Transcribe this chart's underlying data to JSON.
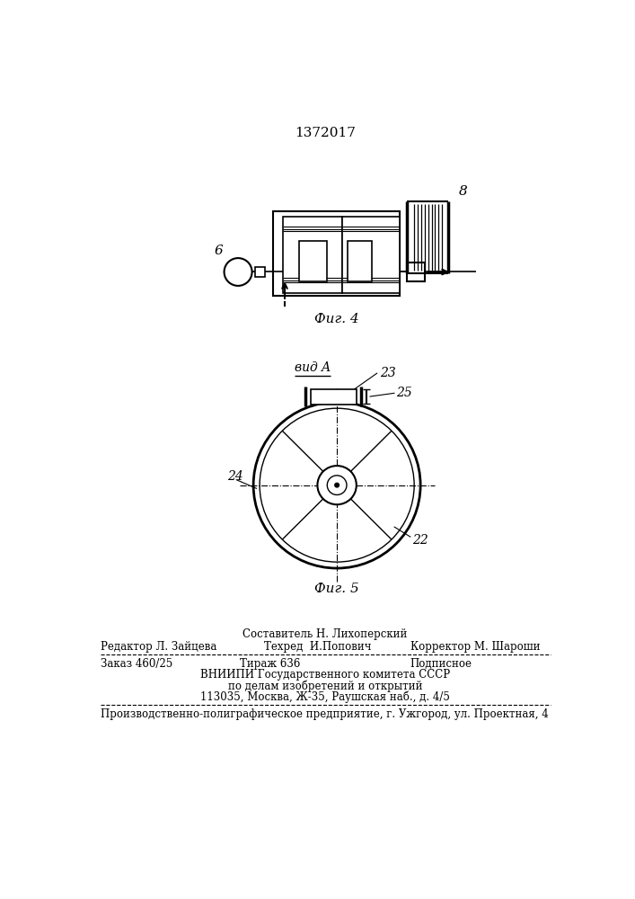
{
  "patent_number": "1372017",
  "fig4_label": "Фиг. 4",
  "fig5_label": "Фиг. 5",
  "vid_a_label": "вид A",
  "label_6": "6",
  "label_8": "8",
  "label_22": "22",
  "label_23": "23",
  "label_24": "24",
  "label_25": "25",
  "footer_line1_center": "Составитель Н. Лихоперский",
  "footer_line2_left": "Редактор Л. Зайцева",
  "footer_line2_center": "Техред  И.Попович",
  "footer_line2_right": "Корректор М. Шароши",
  "footer_line3_left": "Заказ 460/25",
  "footer_line3_center": "Тираж 636",
  "footer_line3_right": "Подписное",
  "footer_line4": "ВНИИПИ Государственного комитета СССР",
  "footer_line5": "по делам изобретений и открытий",
  "footer_line6": "113035, Москва, Ж-35, Раушская наб., д. 4/5",
  "footer_line7": "Производственно-полиграфическое предприятие, г. Ужгород, ул. Проектная, 4",
  "bg_color": "#ffffff",
  "text_color": "#000000",
  "line_color": "#000000"
}
